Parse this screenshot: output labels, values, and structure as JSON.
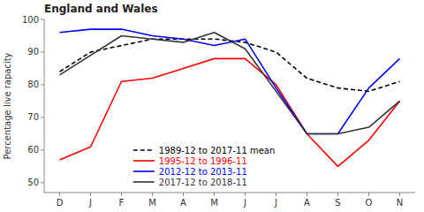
{
  "chart_data": {
    "type": "line",
    "title": "England and Wales",
    "ylabel": "Percentage live rapacity",
    "categories": [
      "D",
      "J",
      "F",
      "M",
      "A",
      "M",
      "J",
      "J",
      "A",
      "S",
      "O",
      "N"
    ],
    "series": [
      {
        "name": "1989-12 to 2017-11 mean",
        "color": "black",
        "line_style": "dashed",
        "values": [
          84,
          90,
          92,
          94,
          94,
          94,
          93,
          90,
          82,
          79,
          78,
          81
        ]
      },
      {
        "name": "1995-12 to 1996-11",
        "color": "red",
        "line_style": "solid",
        "values": [
          57,
          61,
          81,
          82,
          85,
          88,
          88,
          80,
          65,
          55,
          63,
          75
        ]
      },
      {
        "name": "2012-12 to 2013-11",
        "color": "blue",
        "line_style": "solid",
        "values": [
          96,
          97,
          97,
          95,
          94,
          92,
          94,
          79,
          65,
          65,
          79,
          88
        ]
      },
      {
        "name": "2017-12 to 2018-11",
        "color": "#333333",
        "line_style": "solid",
        "values": [
          83,
          89,
          95,
          94,
          93,
          96,
          91,
          78,
          65,
          65,
          67,
          75
        ]
      }
    ],
    "ylim": [
      47,
      100
    ],
    "yticks": [
      50,
      60,
      70,
      80,
      90,
      100
    ],
    "grid": false,
    "legend": "lower left"
  }
}
